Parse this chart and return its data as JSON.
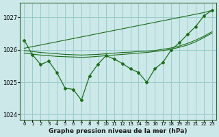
{
  "hours": [
    0,
    1,
    2,
    3,
    4,
    5,
    6,
    7,
    8,
    9,
    10,
    11,
    12,
    13,
    14,
    15,
    16,
    17,
    18,
    19,
    20,
    21,
    22,
    23
  ],
  "pressure_main": [
    1026.3,
    1025.85,
    1025.55,
    1025.65,
    1025.3,
    1024.82,
    1024.78,
    1024.45,
    1025.2,
    1025.55,
    1025.82,
    1025.72,
    1025.58,
    1025.42,
    1025.3,
    1025.0,
    1025.42,
    1025.62,
    1026.0,
    1026.22,
    1026.48,
    1026.72,
    1027.05,
    1027.22
  ],
  "pressure_upper": [
    1026.05,
    1026.1,
    1026.15,
    1026.2,
    1026.25,
    1026.3,
    1026.35,
    1026.4,
    1026.45,
    1026.5,
    1026.55,
    1026.6,
    1026.65,
    1026.7,
    1026.75,
    1026.8,
    1026.85,
    1026.9,
    1026.95,
    1027.0,
    1027.05,
    1027.1,
    1027.15,
    1027.22
  ],
  "pressure_mid1": [
    1025.9,
    1025.87,
    1025.84,
    1025.82,
    1025.8,
    1025.79,
    1025.78,
    1025.77,
    1025.78,
    1025.8,
    1025.82,
    1025.84,
    1025.86,
    1025.88,
    1025.9,
    1025.92,
    1025.95,
    1025.98,
    1026.02,
    1026.08,
    1026.15,
    1026.25,
    1026.38,
    1026.52
  ],
  "pressure_mid2": [
    1025.98,
    1025.95,
    1025.92,
    1025.9,
    1025.88,
    1025.86,
    1025.85,
    1025.84,
    1025.85,
    1025.86,
    1025.88,
    1025.9,
    1025.92,
    1025.93,
    1025.95,
    1025.96,
    1025.98,
    1026.02,
    1026.06,
    1026.12,
    1026.2,
    1026.3,
    1026.42,
    1026.56
  ],
  "line_color": "#1a6b1a",
  "bg_color": "#cce8e8",
  "grid_color": "#99cccc",
  "xlabel": "Graphe pression niveau de la mer (hPa)",
  "ylim": [
    1023.85,
    1027.45
  ],
  "xlim": [
    -0.5,
    23.5
  ],
  "yticks": [
    1024,
    1025,
    1026,
    1027
  ],
  "xticks": [
    0,
    1,
    2,
    3,
    4,
    5,
    6,
    7,
    8,
    9,
    10,
    11,
    12,
    13,
    14,
    15,
    16,
    17,
    18,
    19,
    20,
    21,
    22,
    23
  ]
}
